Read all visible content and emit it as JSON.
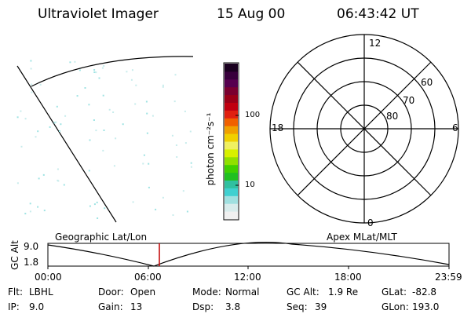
{
  "header": {
    "title": "Ultraviolet Imager",
    "date": "15 Aug 00",
    "time": "06:43:42 UT"
  },
  "colorbar": {
    "unit_label": "photon cm⁻²s⁻¹",
    "ticks": [
      "100",
      "10"
    ],
    "colors": [
      "#1a0020",
      "#38003c",
      "#56004f",
      "#7a0030",
      "#9a0018",
      "#c00010",
      "#e02010",
      "#f06000",
      "#f0a000",
      "#f0d000",
      "#f0f060",
      "#d8f000",
      "#90e000",
      "#40d000",
      "#20c020",
      "#30c0a0",
      "#40d0d0",
      "#a0e0e0",
      "#d8ecec",
      "#f0f0f0"
    ]
  },
  "polar_plot": {
    "mlt_labels": {
      "top": "12",
      "bottom": "0",
      "left": "18",
      "right": "6"
    },
    "lat_labels": [
      "60",
      "70",
      "80"
    ]
  },
  "timeline": {
    "y_axis_label": "GC Alt",
    "y_ticks": [
      "9.0",
      "1.8"
    ],
    "left_title": "Geographic Lat/Lon",
    "right_title": "Apex MLat/MLT",
    "x_ticks": [
      "00:00",
      "06:00",
      "12:00",
      "18:00",
      "23:59"
    ],
    "marker_color": "#c00000"
  },
  "footer": {
    "row1": [
      {
        "key": "Flt:",
        "val": "LBHL"
      },
      {
        "key": "Door:",
        "val": "Open"
      },
      {
        "key": "Mode:",
        "val": "Normal"
      },
      {
        "key": "GC Alt:",
        "val": "1.9 Re"
      },
      {
        "key": "GLat:",
        "val": "-82.8"
      }
    ],
    "row2": [
      {
        "key": "IP:",
        "val": "9.0"
      },
      {
        "key": "Gain:",
        "val": "13"
      },
      {
        "key": "Dsp:",
        "val": "3.8"
      },
      {
        "key": "Seq:",
        "val": "39"
      },
      {
        "key": "GLon:",
        "val": "193.0"
      }
    ]
  }
}
